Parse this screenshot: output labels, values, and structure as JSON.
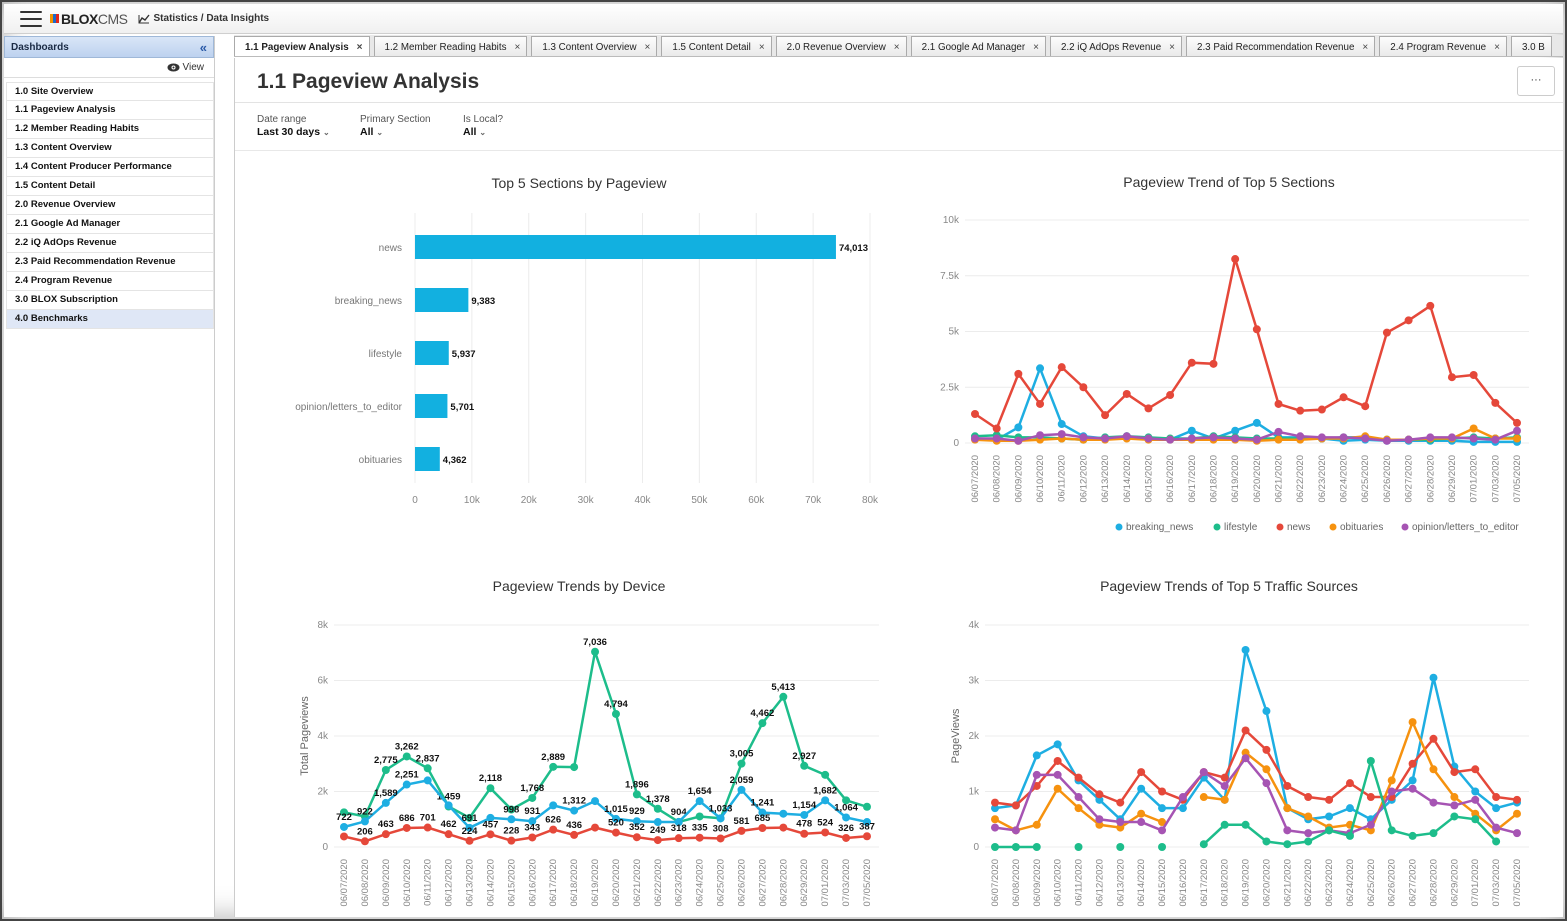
{
  "topbar": {
    "app_name": "BLOX",
    "app_name_suffix": "CMS",
    "breadcrumb": "Statistics / Data Insights"
  },
  "sidebar": {
    "header": "Dashboards",
    "collapse_icon": "«",
    "view_label": "View",
    "items": [
      {
        "label": "1.0 Site Overview",
        "active": false
      },
      {
        "label": "1.1 Pageview Analysis",
        "active": false
      },
      {
        "label": "1.2 Member Reading Habits",
        "active": false
      },
      {
        "label": "1.3 Content Overview",
        "active": false
      },
      {
        "label": "1.4 Content Producer Performance",
        "active": false
      },
      {
        "label": "1.5 Content Detail",
        "active": false
      },
      {
        "label": "2.0 Revenue Overview",
        "active": false
      },
      {
        "label": "2.1 Google Ad Manager",
        "active": false
      },
      {
        "label": "2.2 iQ AdOps Revenue",
        "active": false
      },
      {
        "label": "2.3 Paid Recommendation Revenue",
        "active": false
      },
      {
        "label": "2.4 Program Revenue",
        "active": false
      },
      {
        "label": "3.0 BLOX Subscription",
        "active": false
      },
      {
        "label": "4.0 Benchmarks",
        "active": true
      }
    ]
  },
  "tabs": [
    {
      "label": "1.1 Pageview Analysis",
      "active": true
    },
    {
      "label": "1.2 Member Reading Habits",
      "active": false
    },
    {
      "label": "1.3 Content Overview",
      "active": false
    },
    {
      "label": "1.5 Content Detail",
      "active": false
    },
    {
      "label": "2.0 Revenue Overview",
      "active": false
    },
    {
      "label": "2.1 Google Ad Manager",
      "active": false
    },
    {
      "label": "2.2 iQ AdOps Revenue",
      "active": false
    },
    {
      "label": "2.3 Paid Recommendation Revenue",
      "active": false
    },
    {
      "label": "2.4 Program Revenue",
      "active": false
    },
    {
      "label": "3.0 B",
      "active": false
    }
  ],
  "tab_close_icon": "×",
  "page": {
    "title": "1.1 Pageview Analysis",
    "more_button": "···"
  },
  "filters": [
    {
      "label": "Date range",
      "value": "Last 30 days"
    },
    {
      "label": "Primary Section",
      "value": "All"
    },
    {
      "label": "Is Local?",
      "value": "All"
    }
  ],
  "colors": {
    "accent": "#12b0e0",
    "breaking_news": "#1eaee2",
    "lifestyle": "#1dbd8b",
    "news": "#e5483a",
    "obituaries": "#f6920f",
    "opinion": "#a654b3",
    "active_tab_bg": "#ffffff",
    "sidebar_header": "#c9dbf3"
  },
  "chart_data": [
    {
      "type": "bar",
      "orientation": "horizontal",
      "title": "Top 5 Sections by Pageview",
      "categories": [
        "news",
        "breaking_news",
        "lifestyle",
        "opinion/letters_to_editor",
        "obituaries"
      ],
      "values": [
        74013,
        9383,
        5937,
        5701,
        4362
      ],
      "value_labels": [
        "74,013",
        "9,383",
        "5,937",
        "5,701",
        "4,362"
      ],
      "xlim": [
        0,
        80000
      ],
      "ticks": [
        "0",
        "10k",
        "20k",
        "30k",
        "40k",
        "50k",
        "60k",
        "70k",
        "80k"
      ],
      "color": "#12b0e0"
    },
    {
      "type": "line",
      "title": "Pageview Trend of Top 5 Sections",
      "x": [
        "06/07/2020",
        "06/08/2020",
        "06/09/2020",
        "06/10/2020",
        "06/11/2020",
        "06/12/2020",
        "06/13/2020",
        "06/14/2020",
        "06/15/2020",
        "06/16/2020",
        "06/17/2020",
        "06/18/2020",
        "06/19/2020",
        "06/20/2020",
        "06/21/2020",
        "06/22/2020",
        "06/23/2020",
        "06/24/2020",
        "06/25/2020",
        "06/26/2020",
        "06/27/2020",
        "06/28/2020",
        "06/29/2020",
        "07/01/2020",
        "07/03/2020",
        "07/05/2020"
      ],
      "ylim": [
        0,
        10000
      ],
      "ticks": [
        "0",
        "2.5k",
        "5k",
        "7.5k",
        "10k"
      ],
      "legend_position": "bottom",
      "series": [
        {
          "name": "breaking_news",
          "color": "#1eaee2",
          "values": [
            200,
            150,
            700,
            3350,
            850,
            300,
            200,
            300,
            200,
            150,
            550,
            200,
            550,
            900,
            250,
            250,
            200,
            100,
            150,
            100,
            100,
            100,
            100,
            50,
            50,
            50
          ]
        },
        {
          "name": "lifestyle",
          "color": "#1dbd8b",
          "values": [
            300,
            350,
            250,
            250,
            200,
            150,
            250,
            300,
            250,
            200,
            200,
            300,
            250,
            200,
            200,
            200,
            200,
            250,
            250,
            150,
            150,
            150,
            200,
            250,
            200,
            250
          ]
        },
        {
          "name": "news",
          "color": "#e5483a",
          "values": [
            1300,
            650,
            3100,
            1750,
            3400,
            2500,
            1250,
            2200,
            1550,
            2150,
            3600,
            3550,
            8250,
            5100,
            1750,
            1450,
            1500,
            2050,
            1650,
            4950,
            5500,
            6150,
            2950,
            3050,
            1800,
            900
          ]
        },
        {
          "name": "obituaries",
          "color": "#f6920f",
          "values": [
            150,
            100,
            100,
            150,
            200,
            150,
            150,
            200,
            150,
            150,
            150,
            150,
            150,
            100,
            150,
            150,
            200,
            200,
            300,
            150,
            150,
            200,
            200,
            650,
            200,
            200
          ]
        },
        {
          "name": "opinion/letters_to_editor",
          "color": "#a654b3",
          "values": [
            200,
            200,
            100,
            350,
            400,
            250,
            200,
            300,
            200,
            150,
            200,
            250,
            200,
            150,
            500,
            300,
            250,
            250,
            200,
            100,
            150,
            250,
            250,
            200,
            150,
            550
          ]
        }
      ]
    },
    {
      "type": "line",
      "title": "Pageview Trends by Device",
      "ylabel": "Total Pageviews",
      "x": [
        "06/07/2020",
        "06/08/2020",
        "06/09/2020",
        "06/10/2020",
        "06/11/2020",
        "06/12/2020",
        "06/13/2020",
        "06/14/2020",
        "06/15/2020",
        "06/16/2020",
        "06/17/2020",
        "06/18/2020",
        "06/19/2020",
        "06/20/2020",
        "06/21/2020",
        "06/22/2020",
        "06/23/2020",
        "06/24/2020",
        "06/25/2020",
        "06/26/2020",
        "06/27/2020",
        "06/28/2020",
        "06/29/2020",
        "07/01/2020",
        "07/03/2020",
        "07/05/2020"
      ],
      "ylim": [
        0,
        8000
      ],
      "ticks": [
        "0",
        "2k",
        "4k",
        "6k",
        "8k"
      ],
      "series": [
        {
          "color": "#1dbd8b",
          "values": [
            1250,
            1100,
            2775,
            3262,
            2837,
            1459,
            1050,
            2118,
            1350,
            1768,
            2889,
            2880,
            7036,
            4794,
            1896,
            1378,
            904,
            1100,
            1033,
            3005,
            4462,
            5413,
            2927,
            2600,
            1682,
            1450
          ],
          "labels": [
            "",
            "",
            "2,775",
            "3,262",
            "2,837",
            "1,459",
            "",
            "2,118",
            "",
            "1,768",
            "2,889",
            "",
            "7,036",
            "4,794",
            "1,896",
            "1,378",
            "904",
            "",
            "",
            "3,005",
            "4,462",
            "5,413",
            "2,927",
            "",
            "",
            ""
          ]
        },
        {
          "color": "#1eaee2",
          "values": [
            722,
            922,
            1589,
            2251,
            2400,
            1500,
            691,
            1050,
            998,
            931,
            1500,
            1312,
            1654,
            1015,
            929,
            900,
            900,
            1654,
            1033,
            2059,
            1241,
            1200,
            1154,
            1682,
            1064,
            900
          ],
          "labels": [
            "722",
            "922",
            "1,589",
            "2,251",
            "",
            "",
            "691",
            "",
            "998",
            "931",
            "",
            "1,312",
            "",
            "1,015",
            "929",
            "",
            "",
            "1,654",
            "1,033",
            "2,059",
            "1,241",
            "",
            "1,154",
            "1,682",
            "1,064",
            ""
          ]
        },
        {
          "color": "#e5483a",
          "values": [
            380,
            206,
            463,
            686,
            701,
            462,
            224,
            457,
            228,
            343,
            626,
            436,
            700,
            520,
            352,
            249,
            318,
            335,
            308,
            581,
            685,
            700,
            478,
            524,
            326,
            387
          ],
          "labels": [
            "",
            "206",
            "463",
            "686",
            "701",
            "462",
            "224",
            "457",
            "228",
            "343",
            "626",
            "436",
            "",
            "520",
            "352",
            "249",
            "318",
            "335",
            "308",
            "581",
            "685",
            "",
            "478",
            "524",
            "326",
            "387"
          ]
        }
      ]
    },
    {
      "type": "line",
      "title": "Pageview Trends of Top 5 Traffic Sources",
      "ylabel": "PageViews",
      "x": [
        "06/07/2020",
        "06/08/2020",
        "06/09/2020",
        "06/10/2020",
        "06/11/2020",
        "06/12/2020",
        "06/13/2020",
        "06/14/2020",
        "06/15/2020",
        "06/16/2020",
        "06/17/2020",
        "06/18/2020",
        "06/19/2020",
        "06/20/2020",
        "06/21/2020",
        "06/22/2020",
        "06/23/2020",
        "06/24/2020",
        "06/25/2020",
        "06/26/2020",
        "06/27/2020",
        "06/28/2020",
        "06/29/2020",
        "07/01/2020",
        "07/03/2020",
        "07/05/2020"
      ],
      "ylim": [
        0,
        4000
      ],
      "ticks": [
        "0",
        "1k",
        "2k",
        "3k",
        "4k"
      ],
      "series": [
        {
          "color": "#1eaee2",
          "values": [
            700,
            750,
            1650,
            1850,
            1200,
            850,
            500,
            1050,
            700,
            700,
            1250,
            850,
            3550,
            2450,
            700,
            500,
            550,
            700,
            500,
            850,
            1200,
            3050,
            1450,
            1000,
            700,
            800
          ]
        },
        {
          "color": "#e5483a",
          "values": [
            800,
            750,
            1100,
            1550,
            1250,
            950,
            800,
            1350,
            1000,
            850,
            1350,
            1250,
            2100,
            1750,
            1100,
            900,
            850,
            1150,
            900,
            900,
            1500,
            1950,
            1350,
            1400,
            900,
            850
          ]
        },
        {
          "color": "#f6920f",
          "values": [
            500,
            300,
            400,
            1050,
            700,
            400,
            350,
            600,
            450,
            null,
            900,
            850,
            1700,
            1400,
            700,
            550,
            350,
            400,
            300,
            1200,
            2250,
            1400,
            900,
            600,
            300,
            600
          ]
        },
        {
          "color": "#a654b3",
          "values": [
            350,
            300,
            1300,
            1300,
            900,
            500,
            450,
            450,
            300,
            900,
            1350,
            1100,
            1600,
            1150,
            300,
            250,
            300,
            250,
            400,
            1000,
            1050,
            800,
            750,
            850,
            350,
            250
          ]
        },
        {
          "color": "#1dbd8b",
          "values": [
            0,
            0,
            0,
            null,
            0,
            null,
            0,
            null,
            0,
            null,
            50,
            400,
            400,
            100,
            50,
            100,
            300,
            200,
            1550,
            300,
            200,
            250,
            550,
            500,
            100,
            null
          ]
        }
      ]
    }
  ]
}
